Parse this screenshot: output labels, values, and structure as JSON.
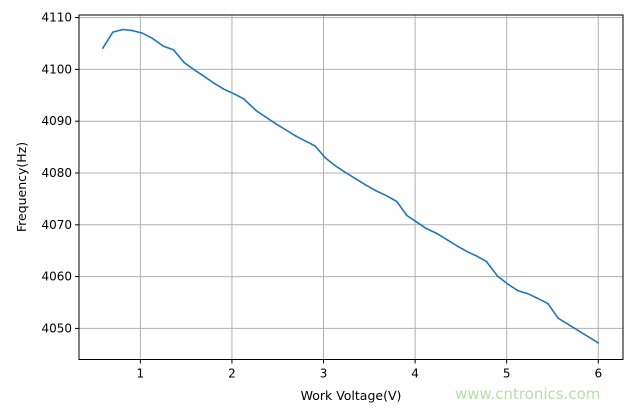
{
  "chart_data": {
    "type": "line",
    "title": "",
    "xlabel": "Work Voltage(V)",
    "ylabel": "Frequency(Hz)",
    "xlim": [
      0.33,
      6.27
    ],
    "ylim": [
      4044,
      4110.5
    ],
    "xticks": [
      1,
      2,
      3,
      4,
      5,
      6
    ],
    "yticks": [
      4050,
      4060,
      4070,
      4080,
      4090,
      4100,
      4110
    ],
    "grid": true,
    "color": "#1f77b4",
    "series": [
      {
        "x": [
          0.59,
          0.7,
          0.81,
          0.91,
          1.02,
          1.13,
          1.25,
          1.36,
          1.48,
          1.59,
          1.7,
          1.8,
          1.91,
          2.02,
          2.13,
          2.26,
          2.37,
          2.48,
          2.59,
          2.7,
          2.8,
          2.91,
          3.02,
          3.13,
          3.24,
          3.35,
          3.46,
          3.57,
          3.69,
          3.8,
          3.91,
          4.02,
          4.12,
          4.24,
          4.35,
          4.46,
          4.57,
          4.68,
          4.78,
          4.9,
          5.01,
          5.12,
          5.23,
          5.34,
          5.45,
          5.56,
          5.67,
          5.78,
          5.89,
          6.0
        ],
        "y": [
          4104.1,
          4107.2,
          4107.7,
          4107.5,
          4107.0,
          4106.0,
          4104.5,
          4103.8,
          4101.3,
          4099.9,
          4098.6,
          4097.4,
          4096.2,
          4095.3,
          4094.3,
          4092.1,
          4090.8,
          4089.5,
          4088.3,
          4087.1,
          4086.2,
          4085.2,
          4082.9,
          4081.4,
          4080.1,
          4078.9,
          4077.7,
          4076.6,
          4075.6,
          4074.5,
          4071.8,
          4070.5,
          4069.3,
          4068.3,
          4067.1,
          4065.9,
          4064.8,
          4063.9,
          4062.9,
          4060.1,
          4058.6,
          4057.3,
          4056.7,
          4055.8,
          4054.8,
          4052.0,
          4050.8,
          4049.6,
          4048.4,
          4047.2
        ]
      }
    ]
  },
  "watermark": "www.cntronics.com"
}
